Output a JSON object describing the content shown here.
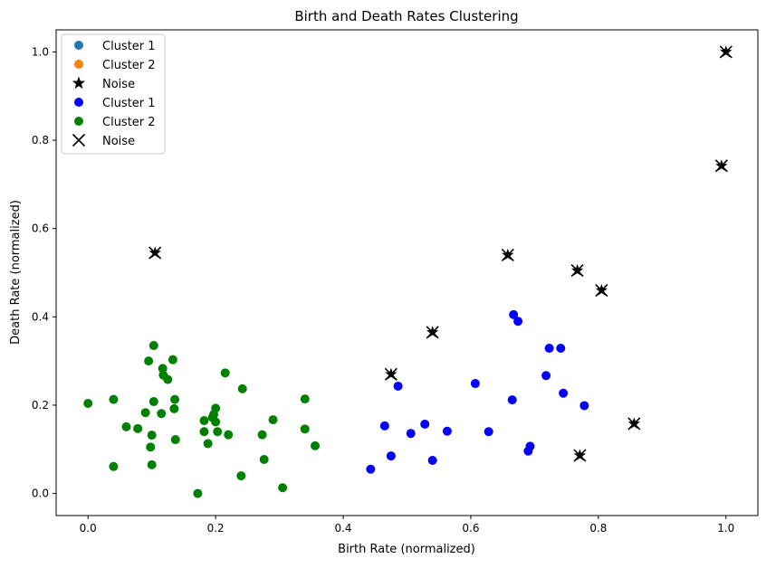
{
  "chart_data": {
    "type": "scatter",
    "title": "Birth and Death Rates Clustering",
    "xlabel": "Birth Rate (normalized)",
    "ylabel": "Death Rate (normalized)",
    "xlim": [
      -0.05,
      1.05
    ],
    "ylim": [
      -0.05,
      1.05
    ],
    "x_ticks": [
      "0.0",
      "0.2",
      "0.4",
      "0.6",
      "0.8",
      "1.0"
    ],
    "y_ticks": [
      "0.0",
      "0.2",
      "0.4",
      "0.6",
      "0.8",
      "1.0"
    ],
    "grid": false,
    "legend_position": "top-left",
    "legend": [
      {
        "label": "Cluster 1",
        "marker": "circle",
        "color": "#1f77b4"
      },
      {
        "label": "Cluster 2",
        "marker": "circle",
        "color": "#ff7f0e"
      },
      {
        "label": "Noise",
        "marker": "star",
        "color": "#000000"
      },
      {
        "label": "Cluster 1",
        "marker": "circle",
        "color": "#0000ff"
      },
      {
        "label": "Cluster 2",
        "marker": "circle",
        "color": "#008000"
      },
      {
        "label": "Noise",
        "marker": "x",
        "color": "#000000"
      }
    ],
    "series": [
      {
        "name": "Cluster 2",
        "marker": "circle",
        "color": "#008000",
        "points": [
          [
            0.0,
            0.204
          ],
          [
            0.04,
            0.213
          ],
          [
            0.04,
            0.061
          ],
          [
            0.06,
            0.151
          ],
          [
            0.078,
            0.147
          ],
          [
            0.09,
            0.183
          ],
          [
            0.095,
            0.3
          ],
          [
            0.098,
            0.105
          ],
          [
            0.1,
            0.132
          ],
          [
            0.1,
            0.065
          ],
          [
            0.103,
            0.335
          ],
          [
            0.103,
            0.208
          ],
          [
            0.115,
            0.181
          ],
          [
            0.117,
            0.283
          ],
          [
            0.118,
            0.268
          ],
          [
            0.125,
            0.258
          ],
          [
            0.133,
            0.303
          ],
          [
            0.135,
            0.192
          ],
          [
            0.136,
            0.213
          ],
          [
            0.137,
            0.122
          ],
          [
            0.172,
            0.0
          ],
          [
            0.182,
            0.165
          ],
          [
            0.182,
            0.14
          ],
          [
            0.188,
            0.113
          ],
          [
            0.195,
            0.172
          ],
          [
            0.197,
            0.179
          ],
          [
            0.2,
            0.193
          ],
          [
            0.2,
            0.162
          ],
          [
            0.203,
            0.14
          ],
          [
            0.215,
            0.273
          ],
          [
            0.22,
            0.133
          ],
          [
            0.24,
            0.04
          ],
          [
            0.242,
            0.237
          ],
          [
            0.273,
            0.133
          ],
          [
            0.276,
            0.077
          ],
          [
            0.29,
            0.167
          ],
          [
            0.305,
            0.013
          ],
          [
            0.34,
            0.214
          ],
          [
            0.34,
            0.146
          ],
          [
            0.356,
            0.108
          ]
        ]
      },
      {
        "name": "Cluster 1",
        "marker": "circle",
        "color": "#0000ff",
        "points": [
          [
            0.443,
            0.055
          ],
          [
            0.465,
            0.153
          ],
          [
            0.475,
            0.085
          ],
          [
            0.486,
            0.243
          ],
          [
            0.506,
            0.136
          ],
          [
            0.528,
            0.157
          ],
          [
            0.54,
            0.075
          ],
          [
            0.563,
            0.141
          ],
          [
            0.607,
            0.249
          ],
          [
            0.628,
            0.14
          ],
          [
            0.665,
            0.212
          ],
          [
            0.667,
            0.405
          ],
          [
            0.674,
            0.39
          ],
          [
            0.69,
            0.096
          ],
          [
            0.693,
            0.107
          ],
          [
            0.718,
            0.267
          ],
          [
            0.723,
            0.329
          ],
          [
            0.741,
            0.329
          ],
          [
            0.745,
            0.227
          ],
          [
            0.778,
            0.199
          ]
        ]
      },
      {
        "name": "Noise",
        "marker": "star-x",
        "color": "#000000",
        "points": [
          [
            0.105,
            0.545
          ],
          [
            0.475,
            0.27
          ],
          [
            0.54,
            0.365
          ],
          [
            0.658,
            0.54
          ],
          [
            0.767,
            0.505
          ],
          [
            0.771,
            0.086
          ],
          [
            0.805,
            0.46
          ],
          [
            0.856,
            0.158
          ],
          [
            0.993,
            0.742
          ],
          [
            1.0,
            1.0
          ]
        ]
      }
    ]
  }
}
